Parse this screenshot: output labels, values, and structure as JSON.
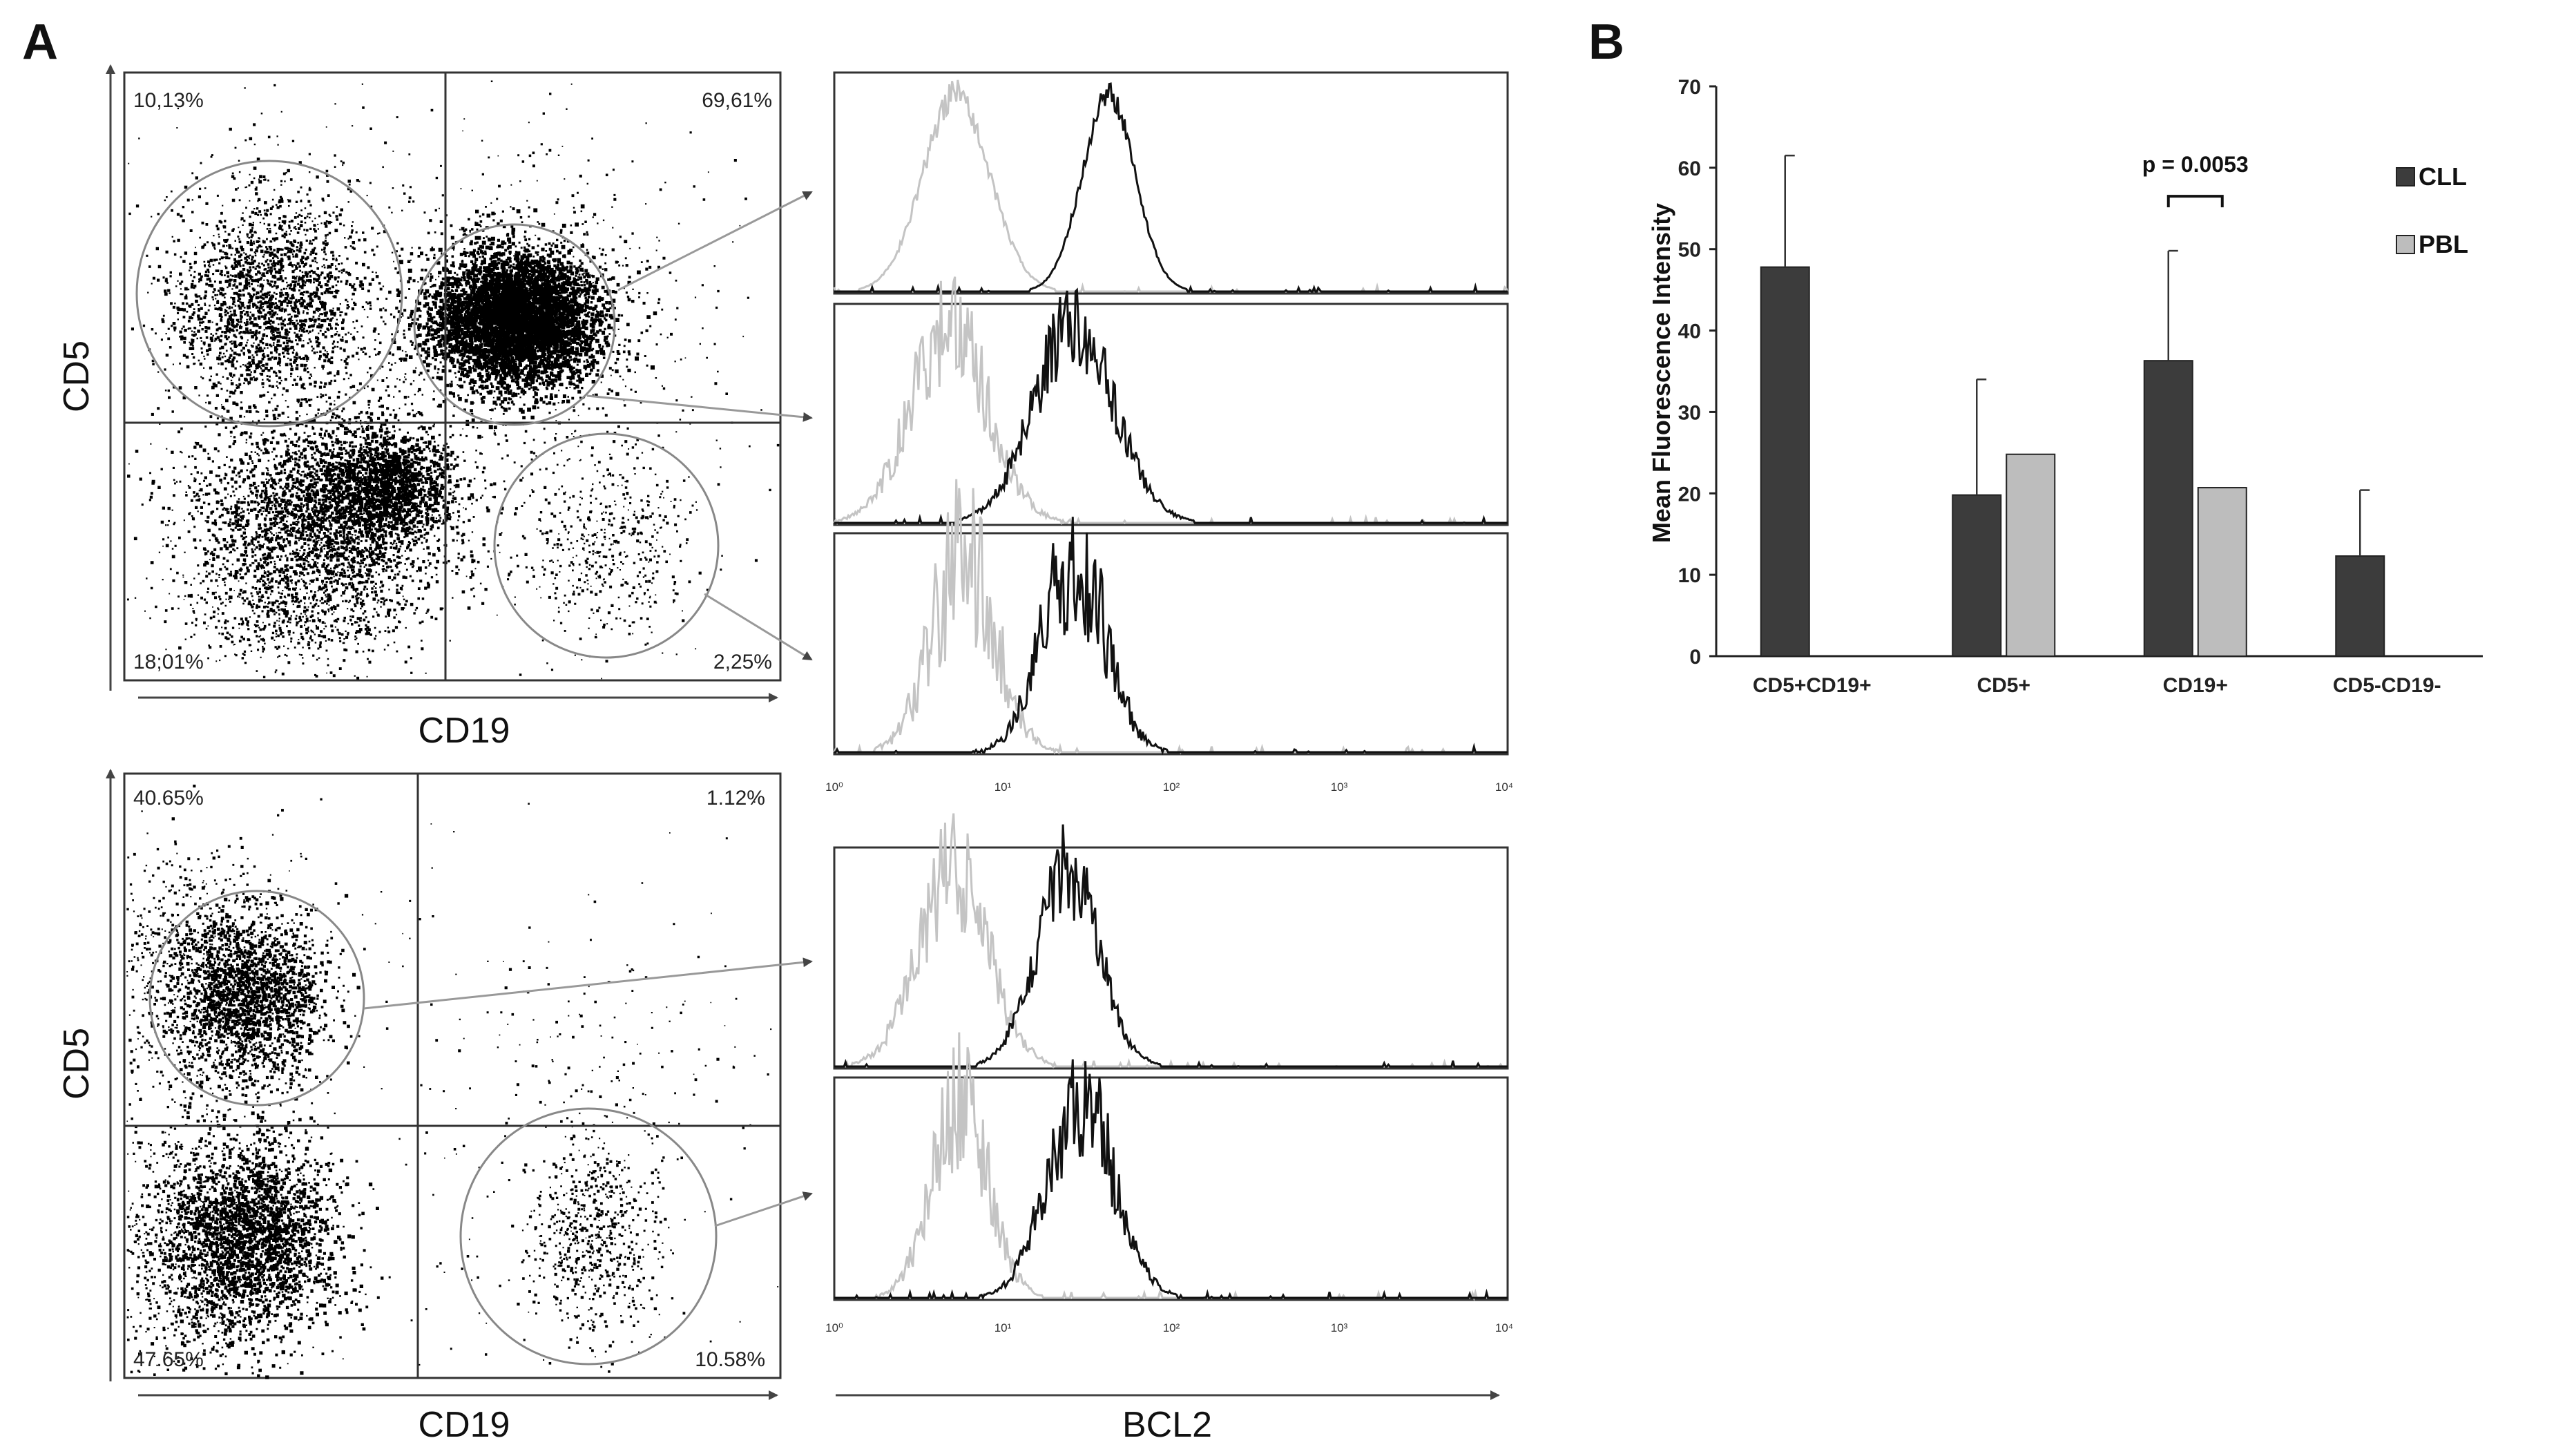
{
  "panel_a_label": "A",
  "panel_b_label": "B",
  "flow_top": {
    "ylabel": "CD5",
    "xlabel": "CD19",
    "quadrants": {
      "upper_left": "10,13%",
      "upper_right": "69,61%",
      "lower_left": "18;01%",
      "lower_right": "2,25%"
    }
  },
  "flow_bottom": {
    "ylabel": "CD5",
    "xlabel": "CD19",
    "quadrants": {
      "upper_left": "40.65%",
      "upper_right": "1.12%",
      "lower_left": "47.65%",
      "lower_right": "10.58%"
    }
  },
  "hist_axis": {
    "xlabel": "BCL2",
    "ticks": [
      "10⁰",
      "10¹",
      "10²",
      "10³",
      "10⁴"
    ]
  },
  "colors": {
    "cll": "#3c3c3c",
    "pbl": "#bdbdbd",
    "hist_dark": "#111111",
    "hist_light": "#c4c4c4"
  },
  "chart_data": {
    "type": "bar",
    "title": "",
    "xlabel": "",
    "ylabel": "Mean Fluorescence Intensity",
    "ylim": [
      0,
      70
    ],
    "yticks": [
      "0",
      "10",
      "20",
      "30",
      "40",
      "50",
      "60",
      "70"
    ],
    "categories": [
      "CD5+CD19+",
      "CD5+",
      "CD19+",
      "CD5-CD19-"
    ],
    "series": [
      {
        "name": "CLL",
        "values": [
          47.8,
          19.8,
          36.3,
          12.3
        ],
        "errors": [
          13.7,
          14.2,
          13.5,
          8.1
        ]
      },
      {
        "name": "PBL",
        "values": [
          null,
          24.8,
          20.7,
          null
        ],
        "errors": [
          null,
          null,
          null,
          null
        ]
      }
    ],
    "annotation": {
      "text": "p = 0.0053",
      "category": "CD19+"
    },
    "legend": [
      "CLL",
      "PBL"
    ]
  }
}
